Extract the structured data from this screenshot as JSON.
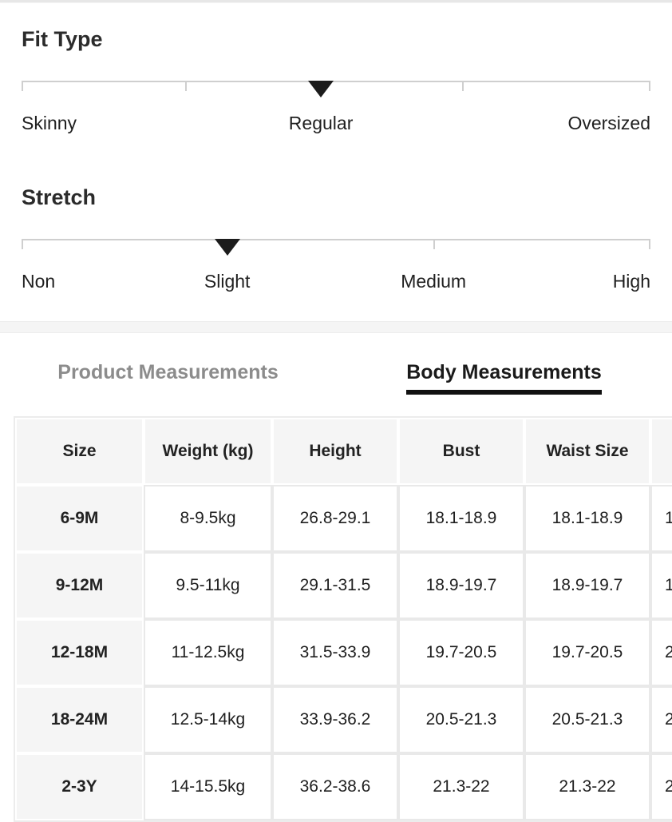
{
  "fit_type": {
    "title": "Fit Type",
    "options": [
      "Skinny",
      "Regular",
      "Oversized"
    ],
    "selected": "Regular"
  },
  "stretch": {
    "title": "Stretch",
    "options": [
      "Non",
      "Slight",
      "Medium",
      "High"
    ],
    "selected": "Slight"
  },
  "tabs": {
    "product": {
      "label": "Product Measurements",
      "active": false
    },
    "body": {
      "label": "Body Measurements",
      "active": true
    }
  },
  "size_table": {
    "columns": [
      "Size",
      "Weight (kg)",
      "Height",
      "Bust",
      "Waist Size",
      ""
    ],
    "rows": [
      [
        "6-9M",
        "8-9.5kg",
        "26.8-29.1",
        "18.1-18.9",
        "18.1-18.9",
        "1"
      ],
      [
        "9-12M",
        "9.5-11kg",
        "29.1-31.5",
        "18.9-19.7",
        "18.9-19.7",
        "1"
      ],
      [
        "12-18M",
        "11-12.5kg",
        "31.5-33.9",
        "19.7-20.5",
        "19.7-20.5",
        "2"
      ],
      [
        "18-24M",
        "12.5-14kg",
        "33.9-36.2",
        "20.5-21.3",
        "20.5-21.3",
        "2"
      ],
      [
        "2-3Y",
        "14-15.5kg",
        "36.2-38.6",
        "21.3-22",
        "21.3-22",
        "2"
      ]
    ]
  },
  "colors": {
    "marker": "#1c1c1c",
    "track": "#cfcfcf",
    "active_tab_text": "#1a1a1a",
    "active_tab_underline": "#111111",
    "inactive_tab_text": "#8c8c8c",
    "table_gray_cell": "#f5f5f5",
    "table_gridline": "#e9e9e9",
    "divider_band": "#f5f5f5"
  }
}
